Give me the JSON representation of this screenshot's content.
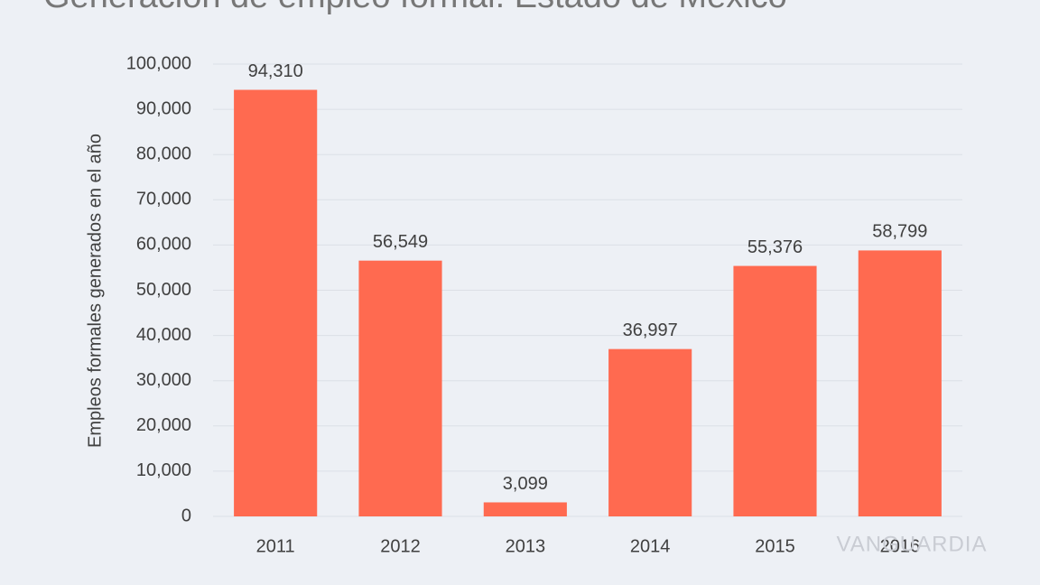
{
  "chart_data": {
    "type": "bar",
    "title": "Generación de empleo formal: Estado de México",
    "y_label": "Empleos formales generados en el año",
    "categories": [
      "2011",
      "2012",
      "2013",
      "2014",
      "2015",
      "2016"
    ],
    "values": [
      94310,
      56549,
      3099,
      36997,
      55376,
      58799
    ],
    "value_labels": [
      "94,310",
      "56,549",
      "3,099",
      "36,997",
      "55,376",
      "58,799"
    ],
    "color": "#ff6a50",
    "ylim": [
      0,
      100000
    ],
    "yticks": [
      0,
      {
        "value": 10000,
        "label": "10,000"
      },
      {
        "value": 20000,
        "label": "20,000"
      },
      {
        "value": 30000,
        "label": "30,000"
      },
      {
        "value": 40000,
        "label": "40,000"
      },
      {
        "value": 50000,
        "label": "50,000"
      },
      {
        "value": 60000,
        "label": "60,000"
      },
      {
        "value": 70000,
        "label": "70,000"
      },
      {
        "value": 80000,
        "label": "80,000"
      },
      {
        "value": 90000,
        "label": "90,000"
      },
      {
        "value": 100000,
        "label": "100,000"
      }
    ],
    "grid": true,
    "watermark": "VANGUARDIA"
  }
}
